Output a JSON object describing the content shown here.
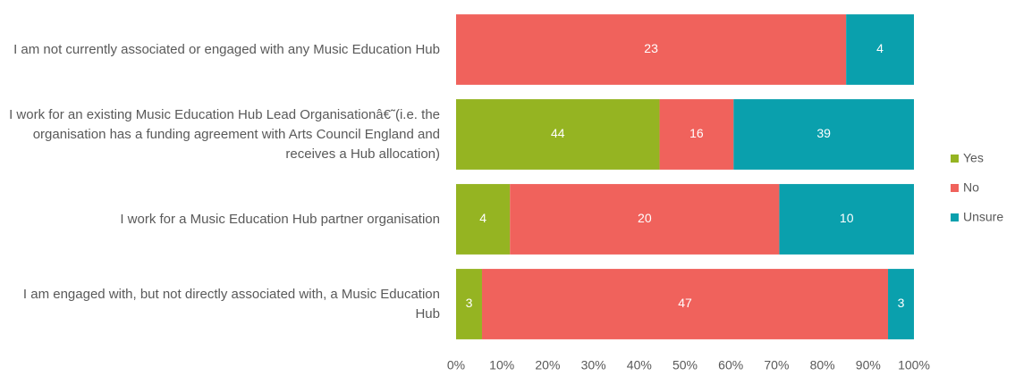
{
  "chart_data": {
    "type": "bar",
    "orientation": "horizontal",
    "stacking": "percent",
    "categories": [
      "I am not currently associated or engaged with any Music Education Hub",
      "I work for an existing Music Education Hub Lead Organisationâ€˜(i.e. the organisation has a funding agreement with Arts Council England and receives  a Hub allocation)",
      "I work for a Music Education Hub partner organisation",
      "I am engaged with, but not directly associated with, a Music Education Hub"
    ],
    "series": [
      {
        "name": "Yes",
        "color": "#95b422",
        "values": [
          0,
          44,
          4,
          3
        ]
      },
      {
        "name": "No",
        "color": "#f0625c",
        "values": [
          23,
          16,
          20,
          47
        ]
      },
      {
        "name": "Unsure",
        "color": "#0aa0ad",
        "values": [
          4,
          39,
          10,
          3
        ]
      }
    ],
    "xlim": [
      0,
      100
    ],
    "xticks": [
      {
        "value": 0,
        "label": "0%"
      },
      {
        "value": 10,
        "label": "10%"
      },
      {
        "value": 20,
        "label": "20%"
      },
      {
        "value": 30,
        "label": "30%"
      },
      {
        "value": 40,
        "label": "40%"
      },
      {
        "value": 50,
        "label": "50%"
      },
      {
        "value": 60,
        "label": "60%"
      },
      {
        "value": 70,
        "label": "70%"
      },
      {
        "value": 80,
        "label": "80%"
      },
      {
        "value": 90,
        "label": "90%"
      },
      {
        "value": 100,
        "label": "100%"
      }
    ],
    "legend": "right"
  }
}
